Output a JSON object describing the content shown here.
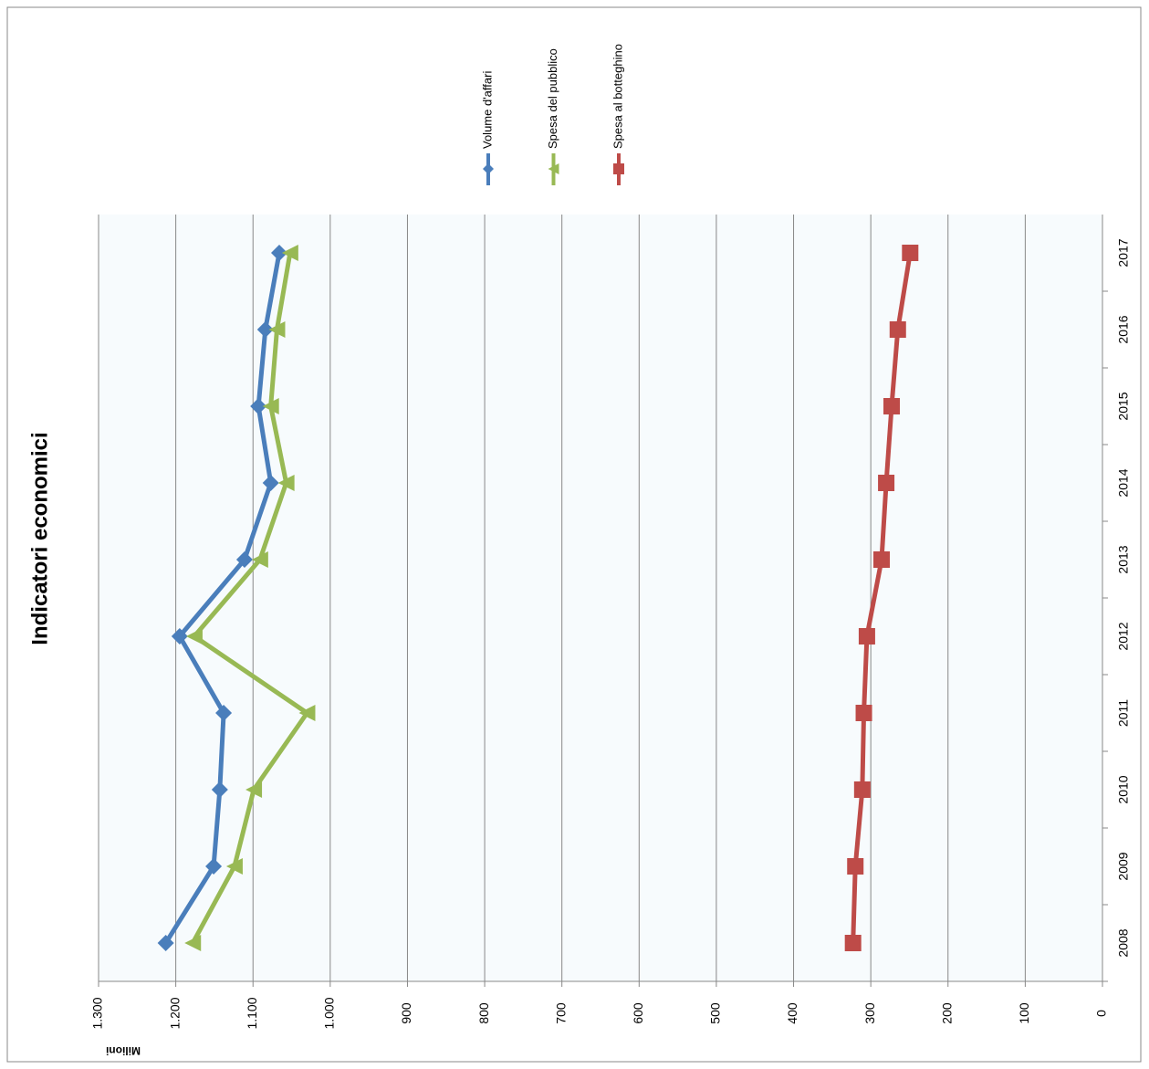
{
  "chart_data": {
    "type": "line",
    "title": "Indicatori economici",
    "y_axis_label": "Milioni",
    "categories": [
      "2008",
      "2009",
      "2010",
      "2011",
      "2012",
      "2013",
      "2014",
      "2015",
      "2016",
      "2017"
    ],
    "series": [
      {
        "name": "Volume d'affari",
        "color": "#4a7ebb",
        "marker": "diamond",
        "values": [
          1213,
          1151,
          1143,
          1138,
          1195,
          1111,
          1077,
          1093,
          1084,
          1066
        ]
      },
      {
        "name": "Spesa del pubblico",
        "color": "#98b954",
        "marker": "triangle",
        "values": [
          1178,
          1124,
          1099,
          1030,
          1176,
          1091,
          1057,
          1077,
          1069,
          1052
        ]
      },
      {
        "name": "Spesa al botteghino",
        "color": "#be4b48",
        "marker": "square",
        "values": [
          323,
          320,
          311,
          309,
          305,
          286,
          280,
          273,
          265,
          249
        ]
      }
    ],
    "ylim": [
      0,
      1300
    ],
    "yticks": [
      0,
      100,
      200,
      300,
      400,
      500,
      600,
      700,
      800,
      900,
      {
        "value": 1000,
        "label": "1.000"
      },
      {
        "value": 1100,
        "label": "1.100"
      },
      {
        "value": 1200,
        "label": "1.200"
      },
      {
        "value": 1300,
        "label": "1.300"
      }
    ],
    "grid": true,
    "legend": "top"
  }
}
